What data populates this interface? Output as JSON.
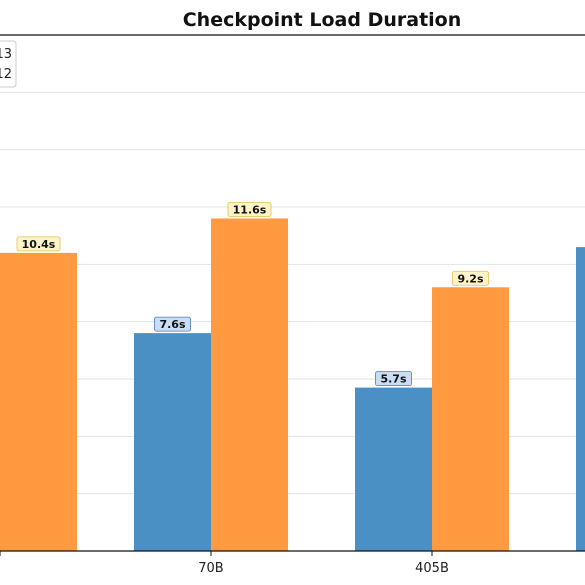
{
  "chart_data": {
    "type": "bar",
    "title": "Checkpoint Load Duration",
    "xlabel": "",
    "ylabel": "",
    "categories": [
      "",
      "70B",
      "405B",
      ""
    ],
    "series": [
      {
        "name": "",
        "color": "#4a90c4",
        "values": [
          null,
          7.6,
          5.7,
          10.6
        ]
      },
      {
        "name": "",
        "color": "#ff9a40",
        "values": [
          10.4,
          11.6,
          9.2,
          null
        ]
      }
    ],
    "value_labels": [
      [
        "",
        "7.6s",
        "5.7s",
        ""
      ],
      [
        "10.4s",
        "11.6s",
        "9.2s",
        ""
      ]
    ],
    "legend": {
      "placement": "top-left",
      "entries": [
        "13",
        "12"
      ]
    },
    "ylim": [
      0,
      18
    ],
    "grid": true
  }
}
